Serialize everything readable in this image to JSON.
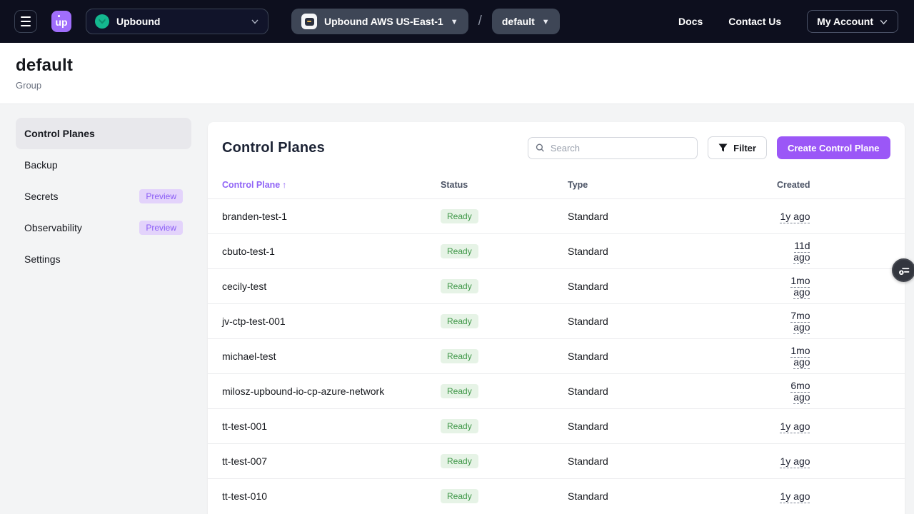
{
  "navbar": {
    "logo_text": "up",
    "org_selector": {
      "label": "Upbound"
    },
    "space_selector": {
      "label": "Upbound AWS US-East-1"
    },
    "separator": "/",
    "group_selector": {
      "label": "default"
    },
    "links": {
      "docs": "Docs",
      "contact": "Contact Us"
    },
    "account": {
      "label": "My Account"
    }
  },
  "page_header": {
    "title": "default",
    "subtitle": "Group"
  },
  "sidebar": {
    "items": [
      {
        "label": "Control Planes",
        "active": true,
        "badge": null
      },
      {
        "label": "Backup",
        "active": false,
        "badge": null
      },
      {
        "label": "Secrets",
        "active": false,
        "badge": "Preview"
      },
      {
        "label": "Observability",
        "active": false,
        "badge": "Preview"
      },
      {
        "label": "Settings",
        "active": false,
        "badge": null
      }
    ]
  },
  "main": {
    "title": "Control Planes",
    "search": {
      "placeholder": "Search"
    },
    "filter_label": "Filter",
    "create_label": "Create Control Plane",
    "table": {
      "columns": {
        "name": "Control Plane",
        "status": "Status",
        "type": "Type",
        "created": "Created"
      },
      "sorted_column": "Control Plane",
      "sort_direction": "asc",
      "rows": [
        {
          "name": "branden-test-1",
          "status": "Ready",
          "type": "Standard",
          "created": "1y ago"
        },
        {
          "name": "cbuto-test-1",
          "status": "Ready",
          "type": "Standard",
          "created": "11d ago"
        },
        {
          "name": "cecily-test",
          "status": "Ready",
          "type": "Standard",
          "created": "1mo ago"
        },
        {
          "name": "jv-ctp-test-001",
          "status": "Ready",
          "type": "Standard",
          "created": "7mo ago"
        },
        {
          "name": "michael-test",
          "status": "Ready",
          "type": "Standard",
          "created": "1mo ago"
        },
        {
          "name": "milosz-upbound-io-cp-azure-network",
          "status": "Ready",
          "type": "Standard",
          "created": "6mo ago"
        },
        {
          "name": "tt-test-001",
          "status": "Ready",
          "type": "Standard",
          "created": "1y ago"
        },
        {
          "name": "tt-test-007",
          "status": "Ready",
          "type": "Standard",
          "created": "1y ago"
        },
        {
          "name": "tt-test-010",
          "status": "Ready",
          "type": "Standard",
          "created": "1y ago"
        }
      ]
    }
  },
  "colors": {
    "navbar_bg": "#0d0f1e",
    "accent_purple": "#9b57f7",
    "logo_purple": "#a06efc",
    "org_icon_green": "#14b890",
    "ready_badge_bg": "#e6f3e6",
    "ready_badge_text": "#3e9747",
    "preview_badge_bg": "#e3d3fb",
    "preview_badge_text": "#8b5cf6",
    "page_bg": "#f3f4f5"
  }
}
